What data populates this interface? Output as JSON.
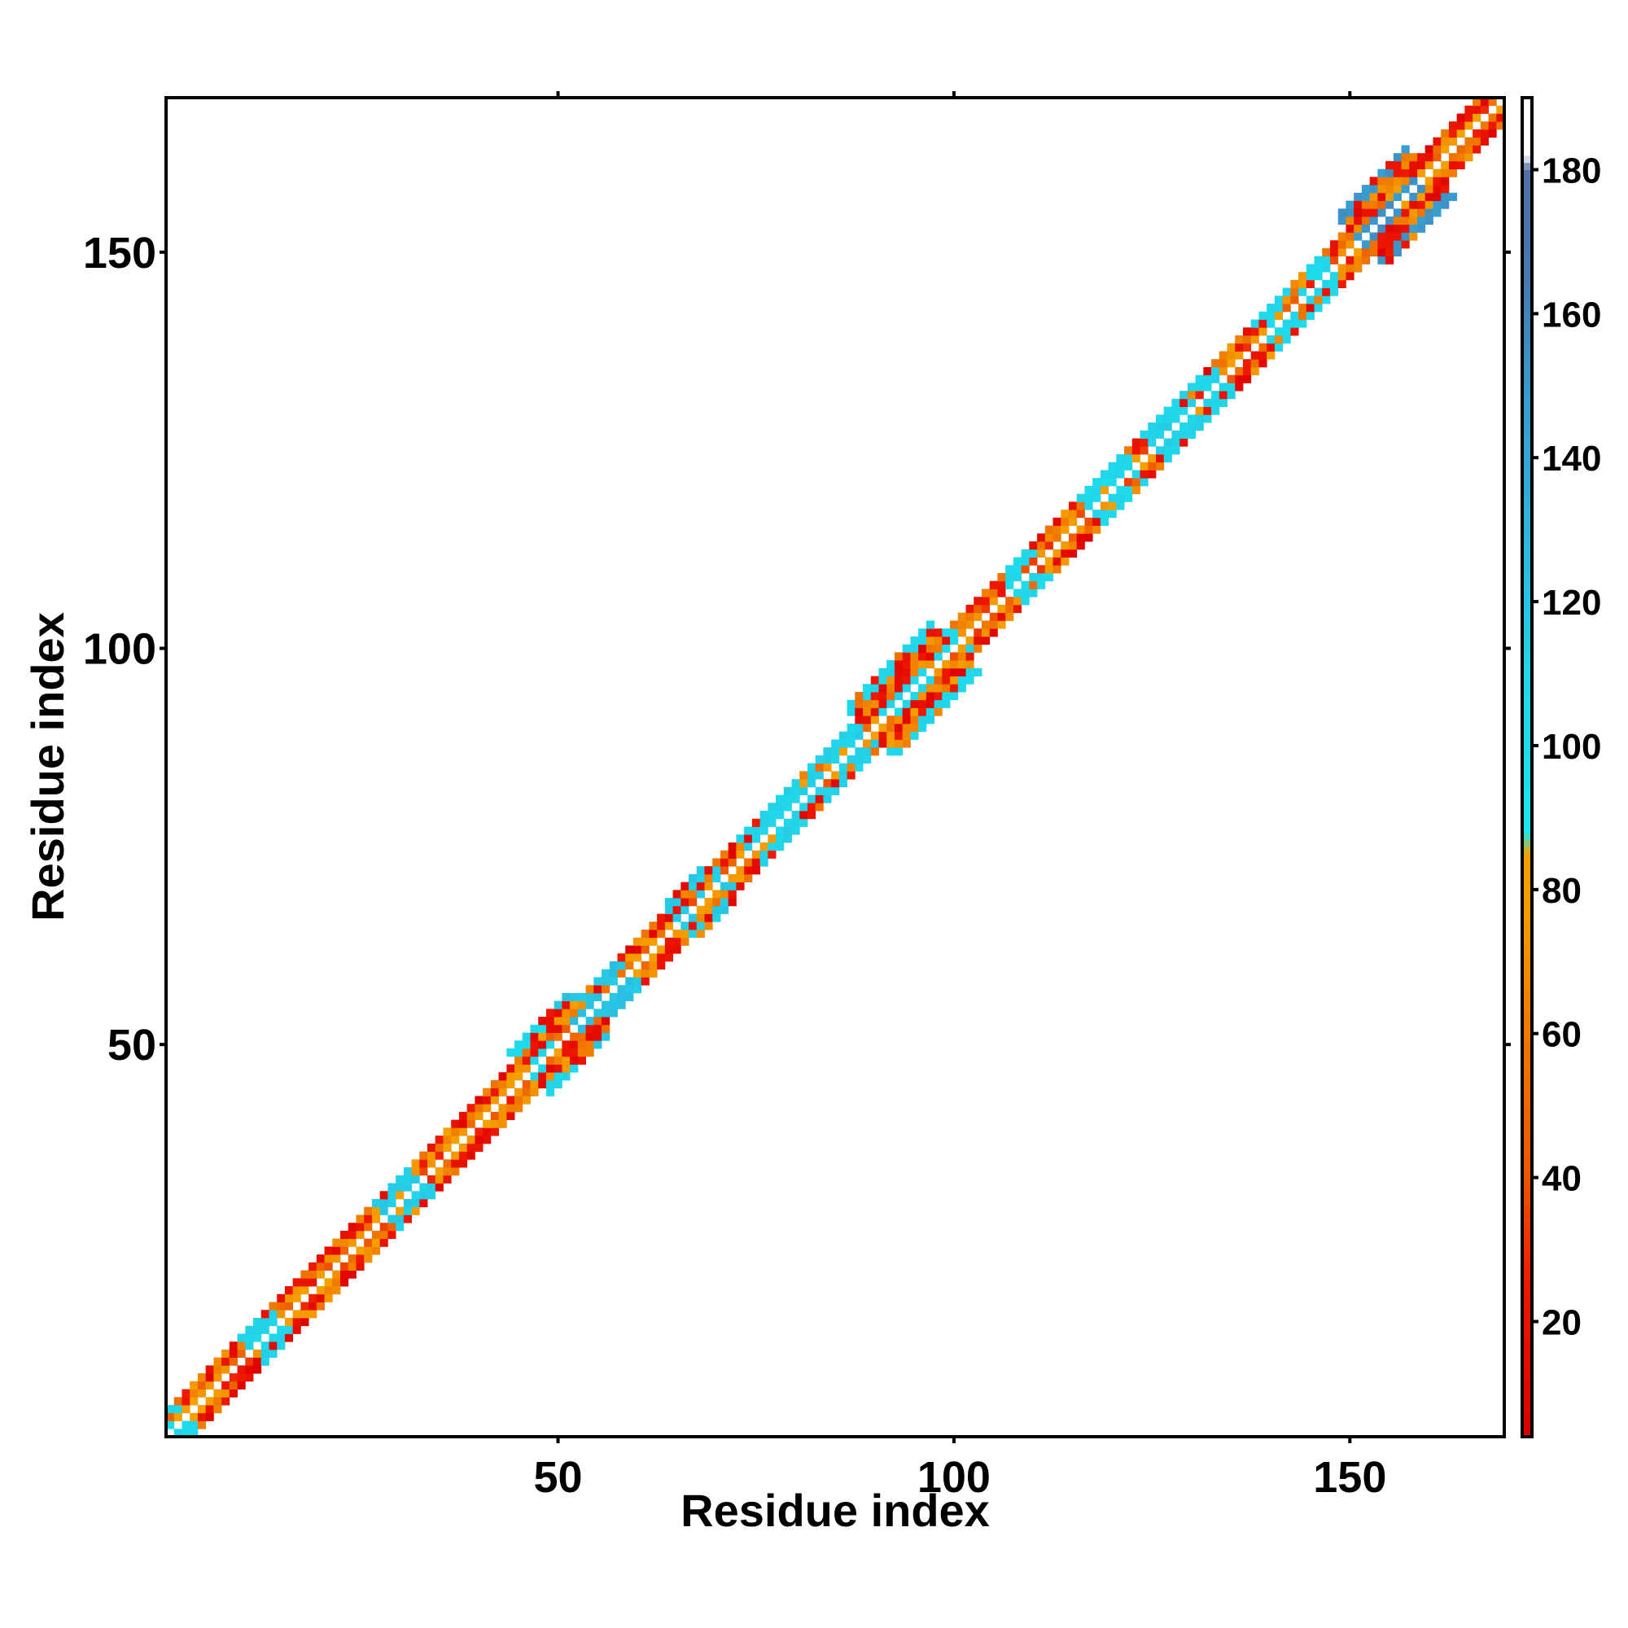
{
  "chart_data": {
    "type": "heatmap",
    "title": "",
    "xlabel": "Residue index",
    "ylabel": "Residue index",
    "xlim": [
      1,
      169
    ],
    "ylim": [
      1,
      169
    ],
    "x_ticks": [
      50,
      100,
      150
    ],
    "y_ticks": [
      50,
      100,
      150
    ],
    "colorbar": {
      "range": [
        4,
        190
      ],
      "ticks": [
        20,
        40,
        60,
        80,
        100,
        120,
        140,
        160,
        180
      ],
      "stops": [
        {
          "value": 4,
          "color": "#dd0000"
        },
        {
          "value": 25,
          "color": "#ee1800"
        },
        {
          "value": 40,
          "color": "#ee5500"
        },
        {
          "value": 60,
          "color": "#f07800"
        },
        {
          "value": 80,
          "color": "#f5a000"
        },
        {
          "value": 85,
          "color": "#f5a000"
        },
        {
          "value": 88,
          "color": "#18e6f0"
        },
        {
          "value": 110,
          "color": "#22d4ea"
        },
        {
          "value": 130,
          "color": "#2eb4dc"
        },
        {
          "value": 150,
          "color": "#3a98cc"
        },
        {
          "value": 165,
          "color": "#4878b0"
        },
        {
          "value": 180,
          "color": "#5070a8"
        },
        {
          "value": 182,
          "color": "#ffffff"
        },
        {
          "value": 190,
          "color": "#ffffff"
        }
      ]
    },
    "diagonal_band_halfwidth": 3,
    "band_wide_regions": [
      {
        "start": 47,
        "end": 54,
        "halfwidth": 5
      },
      {
        "start": 90,
        "end": 100,
        "halfwidth": 6
      },
      {
        "start": 66,
        "end": 70,
        "halfwidth": 4
      },
      {
        "start": 152,
        "end": 160,
        "halfwidth": 6
      }
    ],
    "cyan_regions": [
      {
        "start": 1,
        "end": 3,
        "value": 100
      },
      {
        "start": 12,
        "end": 15,
        "value": 105
      },
      {
        "start": 29,
        "end": 33,
        "value": 108
      },
      {
        "start": 47,
        "end": 50,
        "value": 100
      },
      {
        "start": 53,
        "end": 59,
        "value": 115
      },
      {
        "start": 66,
        "end": 71,
        "value": 110
      },
      {
        "start": 75,
        "end": 90,
        "value": 105
      },
      {
        "start": 92,
        "end": 101,
        "value": 102
      },
      {
        "start": 108,
        "end": 111,
        "value": 100
      },
      {
        "start": 118,
        "end": 123,
        "value": 100
      },
      {
        "start": 126,
        "end": 134,
        "value": 105
      },
      {
        "start": 140,
        "end": 148,
        "value": 100
      },
      {
        "start": 152,
        "end": 160,
        "value": 145
      }
    ]
  }
}
